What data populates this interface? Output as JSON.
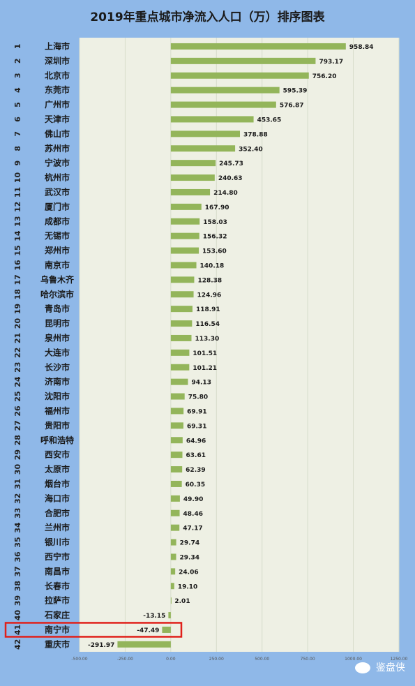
{
  "chart_data": {
    "type": "bar",
    "orientation": "horizontal",
    "title": "2019年重点城市净流入人口（万）排序图表",
    "xlim": [
      -500,
      1250
    ],
    "xticks": [
      "-500.00",
      "-250.00",
      "0.00",
      "250.00",
      "500.00",
      "750.00",
      "1000.00",
      "1250.00"
    ],
    "bar_color": "#93b55a",
    "highlight_color": "#e0201a",
    "highlight_index": 40,
    "items": [
      {
        "rank": "1",
        "city": "上海市",
        "value": 958.84,
        "label": "958.84"
      },
      {
        "rank": "2",
        "city": "深圳市",
        "value": 793.17,
        "label": "793.17"
      },
      {
        "rank": "3",
        "city": "北京市",
        "value": 756.2,
        "label": "756.20"
      },
      {
        "rank": "4",
        "city": "东莞市",
        "value": 595.39,
        "label": "595.39"
      },
      {
        "rank": "5",
        "city": "广州市",
        "value": 576.87,
        "label": "576.87"
      },
      {
        "rank": "6",
        "city": "天津市",
        "value": 453.65,
        "label": "453.65"
      },
      {
        "rank": "7",
        "city": "佛山市",
        "value": 378.88,
        "label": "378.88"
      },
      {
        "rank": "8",
        "city": "苏州市",
        "value": 352.4,
        "label": "352.40"
      },
      {
        "rank": "9",
        "city": "宁波市",
        "value": 245.73,
        "label": "245.73"
      },
      {
        "rank": "10",
        "city": "杭州市",
        "value": 240.63,
        "label": "240.63"
      },
      {
        "rank": "11",
        "city": "武汉市",
        "value": 214.8,
        "label": "214.80"
      },
      {
        "rank": "12",
        "city": "厦门市",
        "value": 167.9,
        "label": "167.90"
      },
      {
        "rank": "13",
        "city": "成都市",
        "value": 158.03,
        "label": "158.03"
      },
      {
        "rank": "14",
        "city": "无锡市",
        "value": 156.32,
        "label": "156.32"
      },
      {
        "rank": "15",
        "city": "郑州市",
        "value": 153.6,
        "label": "153.60"
      },
      {
        "rank": "16",
        "city": "南京市",
        "value": 140.18,
        "label": "140.18"
      },
      {
        "rank": "17",
        "city": "乌鲁木齐",
        "value": 128.38,
        "label": "128.38"
      },
      {
        "rank": "18",
        "city": "哈尔滨市",
        "value": 124.96,
        "label": "124.96"
      },
      {
        "rank": "19",
        "city": "青岛市",
        "value": 118.91,
        "label": "118.91"
      },
      {
        "rank": "20",
        "city": "昆明市",
        "value": 116.54,
        "label": "116.54"
      },
      {
        "rank": "21",
        "city": "泉州市",
        "value": 113.3,
        "label": "113.30"
      },
      {
        "rank": "22",
        "city": "大连市",
        "value": 101.51,
        "label": "101.51"
      },
      {
        "rank": "23",
        "city": "长沙市",
        "value": 101.21,
        "label": "101.21"
      },
      {
        "rank": "24",
        "city": "济南市",
        "value": 94.13,
        "label": "94.13"
      },
      {
        "rank": "25",
        "city": "沈阳市",
        "value": 75.8,
        "label": "75.80"
      },
      {
        "rank": "26",
        "city": "福州市",
        "value": 69.91,
        "label": "69.91"
      },
      {
        "rank": "27",
        "city": "贵阳市",
        "value": 69.31,
        "label": "69.31"
      },
      {
        "rank": "28",
        "city": "呼和浩特",
        "value": 64.96,
        "label": "64.96"
      },
      {
        "rank": "29",
        "city": "西安市",
        "value": 63.61,
        "label": "63.61"
      },
      {
        "rank": "30",
        "city": "太原市",
        "value": 62.39,
        "label": "62.39"
      },
      {
        "rank": "31",
        "city": "烟台市",
        "value": 60.35,
        "label": "60.35"
      },
      {
        "rank": "32",
        "city": "海口市",
        "value": 49.9,
        "label": "49.90"
      },
      {
        "rank": "33",
        "city": "合肥市",
        "value": 48.46,
        "label": "48.46"
      },
      {
        "rank": "34",
        "city": "兰州市",
        "value": 47.17,
        "label": "47.17"
      },
      {
        "rank": "35",
        "city": "银川市",
        "value": 29.74,
        "label": "29.74"
      },
      {
        "rank": "36",
        "city": "西宁市",
        "value": 29.34,
        "label": "29.34"
      },
      {
        "rank": "37",
        "city": "南昌市",
        "value": 24.06,
        "label": "24.06"
      },
      {
        "rank": "38",
        "city": "长春市",
        "value": 19.1,
        "label": "19.10"
      },
      {
        "rank": "39",
        "city": "拉萨市",
        "value": 2.01,
        "label": "2.01"
      },
      {
        "rank": "40",
        "city": "石家庄",
        "value": -13.15,
        "label": "-13.15"
      },
      {
        "rank": "41",
        "city": "南宁市",
        "value": -47.49,
        "label": "-47.49"
      },
      {
        "rank": "42",
        "city": "重庆市",
        "value": -291.97,
        "label": "-291.97"
      }
    ]
  },
  "watermark": {
    "text": "鉴盘侠"
  }
}
